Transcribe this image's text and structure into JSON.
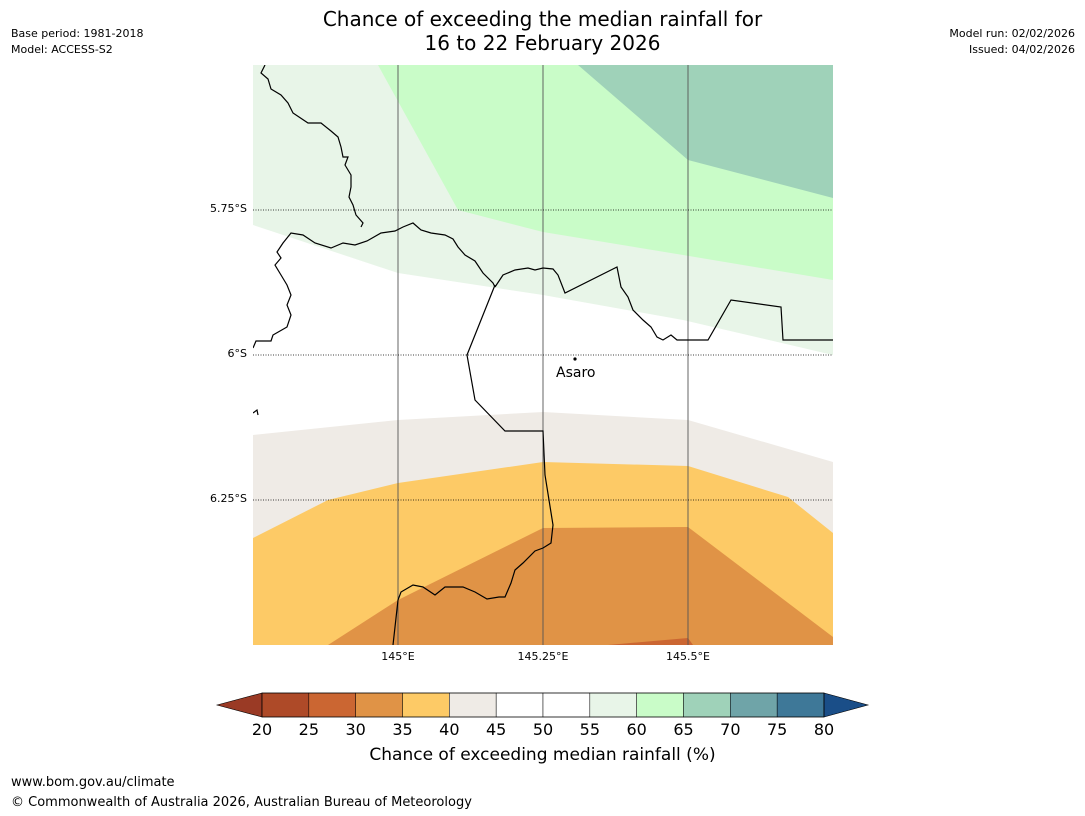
{
  "title_line1": "Chance of exceeding the median rainfall for",
  "title_line2": "16 to 22 February 2026",
  "meta_left": [
    "Base period: 1981-2018",
    "Model: ACCESS-S2"
  ],
  "meta_right": [
    "Model run: 02/02/2026",
    "Issued: 04/02/2026"
  ],
  "map": {
    "lat_labels": [
      "5.75°S",
      "6°S",
      "6.25°S"
    ],
    "lon_labels": [
      "145°E",
      "145.25°E",
      "145.5°E"
    ],
    "place": "Asaro"
  },
  "colorbar": {
    "title": "Chance of exceeding median rainfall (%)",
    "ticks": [
      "20",
      "25",
      "30",
      "35",
      "40",
      "45",
      "50",
      "55",
      "60",
      "65",
      "70",
      "75",
      "80"
    ],
    "colors": [
      "#ae4a28",
      "#cb6632",
      "#e09346",
      "#fdca66",
      "#efebe6",
      "#ffffff",
      "#ffffff",
      "#e8f5e8",
      "#c9fcc8",
      "#9fd2b9",
      "#6fa4a8",
      "#3e7898"
    ],
    "under_color": "#9a3a25",
    "over_color": "#1a4e88"
  },
  "footer": {
    "url": "www.bom.gov.au/climate",
    "copyright": "© Commonwealth of Australia 2026, Australian Bureau of Meteorology"
  }
}
